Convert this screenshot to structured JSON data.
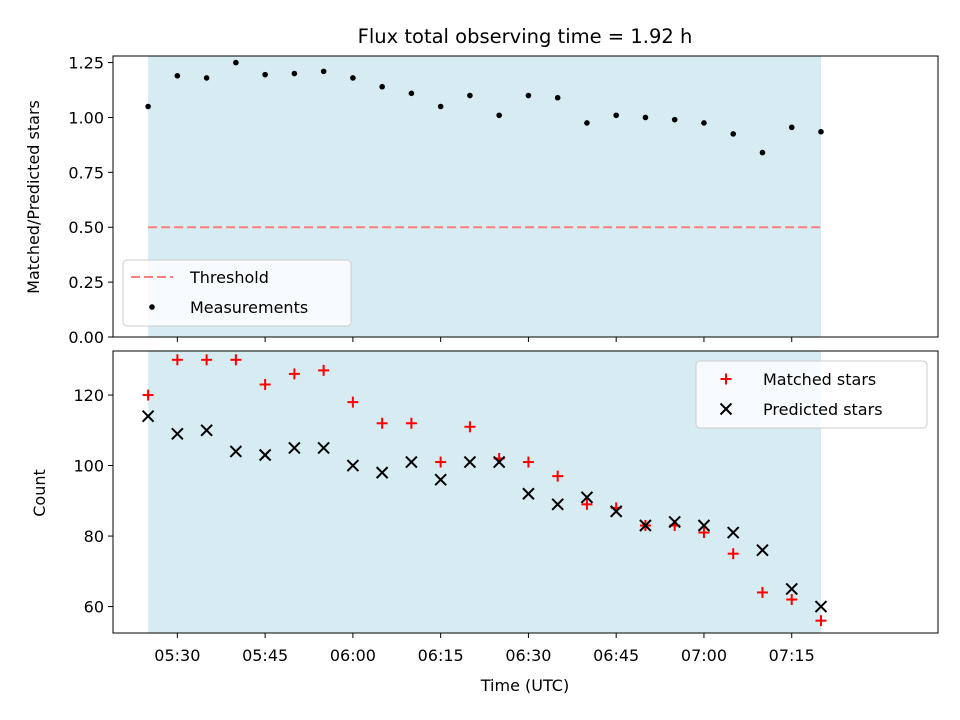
{
  "colors": {
    "span": "#add8e6",
    "threshold": "#ff7f7f",
    "measurements": "#000000",
    "matched": "#ff0000",
    "predicted": "#000000",
    "axes": "#000000"
  },
  "chart_data": [
    {
      "type": "scatter",
      "title": "Flux total observing time = 1.92 h",
      "xlabel": "",
      "ylabel": "Matched/Predicted stars",
      "ylim": [
        0,
        1.28
      ],
      "yticks": [
        "0.00",
        "0.25",
        "0.50",
        "0.75",
        "1.00",
        "1.25"
      ],
      "ytick_values": [
        0,
        0.25,
        0.5,
        0.75,
        1.0,
        1.25
      ],
      "observing_span": [
        "05:25",
        "07:20"
      ],
      "threshold": 0.5,
      "legend": {
        "position": "lower-left",
        "entries": [
          "Threshold",
          "Measurements"
        ]
      },
      "x": [
        "05:25",
        "05:30",
        "05:35",
        "05:40",
        "05:45",
        "05:50",
        "05:55",
        "06:00",
        "06:05",
        "06:10",
        "06:15",
        "06:20",
        "06:25",
        "06:30",
        "06:35",
        "06:40",
        "06:45",
        "06:50",
        "06:55",
        "07:00",
        "07:05",
        "07:10",
        "07:15",
        "07:20"
      ],
      "series": [
        {
          "name": "Measurements",
          "values": [
            1.05,
            1.19,
            1.18,
            1.25,
            1.195,
            1.2,
            1.21,
            1.18,
            1.14,
            1.11,
            1.05,
            1.1,
            1.01,
            1.1,
            1.09,
            0.975,
            1.01,
            1.0,
            0.99,
            0.975,
            0.925,
            0.84,
            0.955,
            0.935
          ]
        }
      ]
    },
    {
      "type": "scatter",
      "title": "",
      "xlabel": "Time (UTC)",
      "ylabel": "Count",
      "ylim": [
        52.5,
        132.5
      ],
      "yticks": [
        "60",
        "80",
        "100",
        "120"
      ],
      "ytick_values": [
        60,
        80,
        100,
        120
      ],
      "xlim": [
        "05:19",
        "07:40"
      ],
      "xticks": [
        "05:30",
        "05:45",
        "06:00",
        "06:15",
        "06:30",
        "06:45",
        "07:00",
        "07:15"
      ],
      "observing_span": [
        "05:25",
        "07:20"
      ],
      "legend": {
        "position": "top-right",
        "entries": [
          "Matched stars",
          "Predicted stars"
        ]
      },
      "x": [
        "05:25",
        "05:30",
        "05:35",
        "05:40",
        "05:45",
        "05:50",
        "05:55",
        "06:00",
        "06:05",
        "06:10",
        "06:15",
        "06:20",
        "06:25",
        "06:30",
        "06:35",
        "06:40",
        "06:45",
        "06:50",
        "06:55",
        "07:00",
        "07:05",
        "07:10",
        "07:15",
        "07:20"
      ],
      "series": [
        {
          "name": "Matched stars",
          "values": [
            120,
            130,
            130,
            130,
            123,
            126,
            127,
            118,
            112,
            112,
            101,
            111,
            102,
            101,
            97,
            89,
            88,
            83,
            83,
            81,
            75,
            64,
            62,
            56
          ]
        },
        {
          "name": "Predicted stars",
          "values": [
            114,
            109,
            110,
            104,
            103,
            105,
            105,
            100,
            98,
            101,
            96,
            101,
            101,
            92,
            89,
            91,
            87,
            83,
            84,
            83,
            81,
            76,
            65,
            60
          ]
        }
      ]
    }
  ]
}
